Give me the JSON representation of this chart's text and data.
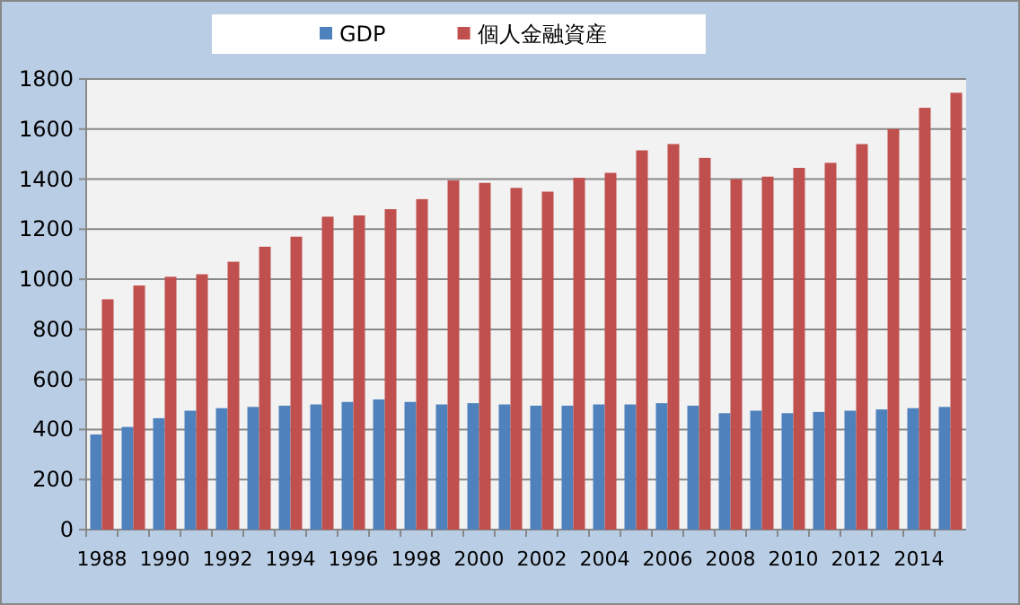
{
  "chart_data": {
    "type": "bar",
    "categories": [
      "1988",
      null,
      "1990",
      null,
      "1992",
      null,
      "1994",
      null,
      "1996",
      null,
      "1998",
      null,
      "2000",
      null,
      "2002",
      null,
      "2004",
      null,
      "2006",
      null,
      "2008",
      null,
      "2010",
      null,
      "2012",
      null,
      "2014",
      null
    ],
    "series": [
      {
        "name": "GDP",
        "color": "#4f81bd",
        "values": [
          380,
          410,
          445,
          475,
          485,
          490,
          495,
          500,
          510,
          520,
          510,
          500,
          505,
          500,
          495,
          495,
          500,
          500,
          505,
          495,
          465,
          475,
          465,
          470,
          475,
          480,
          485,
          490
        ]
      },
      {
        "name": "個人金融資産",
        "color": "#c0504d",
        "values": [
          920,
          975,
          1010,
          1020,
          1070,
          1130,
          1170,
          1250,
          1255,
          1280,
          1320,
          1395,
          1385,
          1365,
          1350,
          1405,
          1425,
          1515,
          1540,
          1485,
          1400,
          1410,
          1445,
          1465,
          1540,
          1600,
          1685,
          1745
        ]
      }
    ],
    "ylim": [
      0,
      1800
    ],
    "yticks": [
      0,
      200,
      400,
      600,
      800,
      1000,
      1200,
      1400,
      1600,
      1800
    ],
    "grid": "y",
    "legend": "top"
  }
}
